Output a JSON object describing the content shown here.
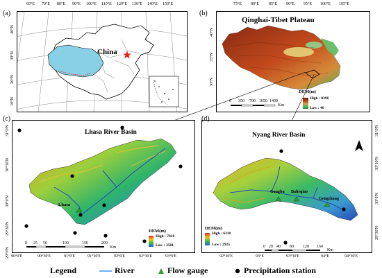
{
  "panels": {
    "a": {
      "label": "(a)",
      "top_ticks": [
        "60°E",
        "70°E",
        "80°E",
        "90°E",
        "100°E",
        "110°E",
        "120°E",
        "130°E",
        "140°E",
        "150°E"
      ],
      "left_ticks": [
        "40°N",
        "30°N",
        "20°N",
        "10°N"
      ],
      "country_label": "China"
    },
    "b": {
      "label": "(b)",
      "top_ticks": [
        "75°E",
        "80°E",
        "85°E",
        "90°E",
        "95°E",
        "100°E",
        "105°E"
      ],
      "left_ticks": [
        "40°N",
        "35°N",
        "30°N"
      ],
      "title": "Qinghai-Tibet Plateau",
      "dem_title": "DEM(m)",
      "dem_high": "High : 8396",
      "dem_low": "Low : 46",
      "scale_ticks": [
        "0",
        "350",
        "700",
        "1050",
        "1400"
      ],
      "scale_unit": "Km"
    },
    "c": {
      "label": "(c)",
      "left_ticks": [
        "31°0'N",
        "30°30'N",
        "30°0'N",
        "29°30'N",
        "29°0'N"
      ],
      "bottom_ticks": [
        "90°0'E",
        "90°30'E",
        "91°0'E",
        "91°30'E",
        "92°0'E",
        "92°30'E",
        "93°0'E"
      ],
      "title": "Lhasa River Basin",
      "station_label": "Lhasa",
      "dem_title": "DEM(m)",
      "dem_high": "High : 7010",
      "dem_low": "Low : 3581",
      "scale_ticks": [
        "0",
        "25",
        "50",
        "100",
        "150",
        "200"
      ],
      "scale_unit": "Km"
    },
    "d": {
      "label": "(d)",
      "right_ticks": [
        "31°0'N",
        "30°30'N",
        "30°0'N",
        "29°30'N"
      ],
      "bottom_ticks": [
        "92°30'E",
        "93°E",
        "93°30'E",
        "94°E",
        "94°30'E"
      ],
      "title": "Nyang River Basin",
      "gauges": [
        "Gongbu",
        "Baheqiao",
        "Gengzhang"
      ],
      "dem_title": "DEM(m)",
      "dem_high": "High : 6310",
      "dem_low": "Low : 2925",
      "scale_ticks": [
        "0",
        "20",
        "40",
        "80",
        "120",
        "160"
      ],
      "scale_unit": "Km"
    }
  },
  "legend": {
    "title": "Legend",
    "river": "River",
    "flow_gauge": "Flow gauge",
    "precipitation": "Precipitation station"
  },
  "colors": {
    "river": "#3399ff",
    "gauge": "#2ca02c",
    "tibet_fill": "#88d0e6",
    "star": "#e8201a"
  }
}
